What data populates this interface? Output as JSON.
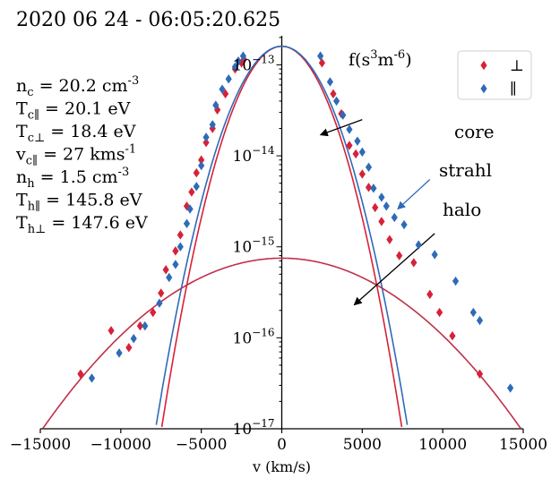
{
  "chart_data": {
    "type": "scatter",
    "title": "2020 06 24 - 06:05:20.625",
    "xlabel": "v (km/s)",
    "ylabel": "f(s³m⁻⁶)",
    "ylabel_parts": {
      "base": "f(s",
      "sup1": "3",
      "mid": "m",
      "sup2": "-6",
      "end": ")"
    },
    "xlim": [
      -15000,
      15000
    ],
    "ylim": [
      1e-17,
      2.5e-13
    ],
    "yscale": "log",
    "xticks": [
      -15000,
      -10000,
      -5000,
      0,
      5000,
      10000,
      15000
    ],
    "xtick_labels": [
      "−15000",
      "−10000",
      "−5000",
      "0",
      "5000",
      "10000",
      "15000"
    ],
    "yticks": [
      1e-17,
      1e-16,
      1e-15,
      1e-14,
      1e-13
    ],
    "ytick_labels": [
      {
        "base": "10",
        "exp": "−17"
      },
      {
        "base": "10",
        "exp": "−16"
      },
      {
        "base": "10",
        "exp": "−15"
      },
      {
        "base": "10",
        "exp": "−14"
      },
      {
        "base": "10",
        "exp": "−13"
      }
    ],
    "legend": {
      "position": "top-right",
      "entries": [
        {
          "label": "⊥",
          "color": "#d62238",
          "marker": "diamond"
        },
        {
          "label": "∥",
          "color": "#2e6bb8",
          "marker": "diamond"
        }
      ]
    },
    "series": [
      {
        "name": "⊥",
        "color": "#d62238",
        "marker": "diamond",
        "points": [
          [
            -12500,
            4e-17
          ],
          [
            -10600,
            1.2e-16
          ],
          [
            -9500,
            7.8e-17
          ],
          [
            -8800,
            1.35e-16
          ],
          [
            -8000,
            1.9e-16
          ],
          [
            -7500,
            3.1e-16
          ],
          [
            -7200,
            5.6e-16
          ],
          [
            -6600,
            9e-16
          ],
          [
            -6300,
            1.35e-15
          ],
          [
            -5900,
            2.8e-15
          ],
          [
            -5600,
            4e-15
          ],
          [
            -5300,
            6.5e-15
          ],
          [
            -5000,
            9e-15
          ],
          [
            -4700,
            1.4e-14
          ],
          [
            -4300,
            2e-14
          ],
          [
            -4000,
            3.2e-14
          ],
          [
            -3500,
            4.8e-14
          ],
          [
            -2900,
            9e-14
          ],
          [
            -2500,
            1.05e-13
          ],
          [
            -2350,
            1.15e-13
          ],
          [
            2500,
            1.05e-13
          ],
          [
            3200,
            4.8e-14
          ],
          [
            3700,
            2.9e-14
          ],
          [
            4200,
            1.3e-14
          ],
          [
            4600,
            1.05e-14
          ],
          [
            5000,
            6.3e-15
          ],
          [
            5400,
            4.5e-15
          ],
          [
            5800,
            2.7e-15
          ],
          [
            6200,
            1.9e-15
          ],
          [
            6700,
            1.2e-15
          ],
          [
            7300,
            8e-16
          ],
          [
            8200,
            6.7e-16
          ],
          [
            9200,
            3e-16
          ],
          [
            9800,
            1.9e-16
          ],
          [
            10600,
            1.05e-16
          ],
          [
            12300,
            4e-17
          ]
        ]
      },
      {
        "name": "∥",
        "color": "#2e6bb8",
        "marker": "diamond",
        "points": [
          [
            -11800,
            3.6e-17
          ],
          [
            -10100,
            6.8e-17
          ],
          [
            -9200,
            9.8e-17
          ],
          [
            -8500,
            1.35e-16
          ],
          [
            -7600,
            2.4e-16
          ],
          [
            -7000,
            4.6e-16
          ],
          [
            -6600,
            6.4e-16
          ],
          [
            -6300,
            1e-15
          ],
          [
            -5900,
            1.8e-15
          ],
          [
            -5700,
            2.6e-15
          ],
          [
            -5300,
            4.6e-15
          ],
          [
            -5000,
            7.8e-15
          ],
          [
            -4700,
            1.6e-14
          ],
          [
            -4300,
            2.2e-14
          ],
          [
            -4100,
            3.6e-14
          ],
          [
            -3700,
            5.4e-14
          ],
          [
            -3300,
            7e-14
          ],
          [
            -2900,
            9.5e-14
          ],
          [
            -2700,
            1.1e-13
          ],
          [
            -2400,
            1.25e-13
          ],
          [
            2400,
            1.25e-13
          ],
          [
            3000,
            6.5e-14
          ],
          [
            3400,
            4e-14
          ],
          [
            3800,
            2.8e-14
          ],
          [
            4200,
            1.95e-14
          ],
          [
            4700,
            1.45e-14
          ],
          [
            5000,
            1.1e-14
          ],
          [
            5400,
            7.5e-15
          ],
          [
            5700,
            4.4e-15
          ],
          [
            6200,
            3.5e-15
          ],
          [
            6500,
            2.8e-15
          ],
          [
            7000,
            2.1e-15
          ],
          [
            7600,
            1.75e-15
          ],
          [
            8500,
            1.05e-15
          ],
          [
            9500,
            8.2e-16
          ],
          [
            10800,
            4.2e-16
          ],
          [
            11900,
            1.9e-16
          ],
          [
            12300,
            1.55e-16
          ],
          [
            14200,
            2.8e-17
          ]
        ]
      }
    ],
    "fit_curves": [
      {
        "name": "core fit (⊥)",
        "color": "#d62238",
        "amplitude": 1.6e-13,
        "thermal_speed": 2400,
        "drift": 0
      },
      {
        "name": "core fit (∥)",
        "color": "#2e6bb8",
        "amplitude": 1.6e-13,
        "thermal_speed": 2520,
        "drift": 0
      },
      {
        "name": "halo fit",
        "color": "#c0304a",
        "amplitude": 7.5e-16,
        "thermal_speed": 7150,
        "drift": 0
      }
    ],
    "parameters": [
      {
        "sym": "n",
        "sub": "c",
        "rest": " = 20.2 cm",
        "sup": "-3"
      },
      {
        "sym": "T",
        "sub": "c∥",
        "rest": " = 20.1 eV",
        "sup": ""
      },
      {
        "sym": "T",
        "sub": "c⊥",
        "rest": " = 18.4 eV",
        "sup": ""
      },
      {
        "sym": "v",
        "sub": "c∥",
        "rest": " = 27 kms",
        "sup": "-1"
      },
      {
        "sym": "n",
        "sub": "h",
        "rest": " = 1.5 cm",
        "sup": "-3"
      },
      {
        "sym": "T",
        "sub": "h∥",
        "rest": " = 145.8 eV",
        "sup": ""
      },
      {
        "sym": "T",
        "sub": "h⊥",
        "rest": " = 147.6 eV",
        "sup": ""
      }
    ],
    "annotations": [
      {
        "text": "core",
        "color": "#000000",
        "arrow_from": [
          5000,
          2.5e-14
        ],
        "arrow_to": [
          2400,
          1.7e-14
        ]
      },
      {
        "text": "strahl",
        "color": "#2e6bb8",
        "arrow_from": [
          9200,
          5.5e-15
        ],
        "arrow_to": [
          7200,
          2.6e-15
        ]
      },
      {
        "text": "halo",
        "color": "#000000",
        "arrow_from": [
          9500,
          1.4e-15
        ],
        "arrow_to": [
          4500,
          2.3e-16
        ]
      }
    ]
  }
}
